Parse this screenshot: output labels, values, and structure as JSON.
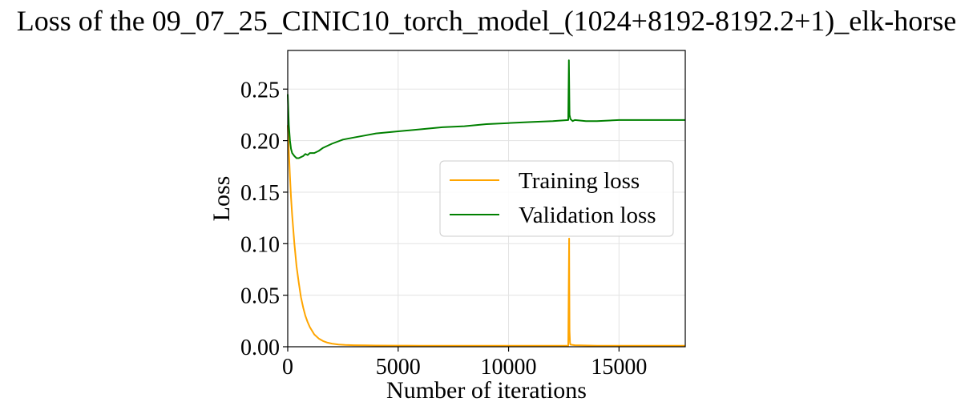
{
  "chart_data": {
    "type": "line",
    "title": "Loss of the 09_07_25_CINIC10_torch_model_(1024+8192-8192.2+1)_elk-horse",
    "xlabel": "Number of iterations",
    "ylabel": "Loss",
    "xlim": [
      0,
      18000
    ],
    "ylim": [
      0,
      0.2875
    ],
    "xticks": [
      0,
      5000,
      10000,
      15000
    ],
    "xtick_labels": [
      "0",
      "5000",
      "10000",
      "15000"
    ],
    "yticks": [
      0,
      0.05,
      0.1,
      0.15,
      0.2,
      0.25
    ],
    "ytick_labels": [
      "0.00",
      "0.05",
      "0.10",
      "0.15",
      "0.20",
      "0.25"
    ],
    "grid": true,
    "legend_position": "center-right",
    "series": [
      {
        "name": "Training loss",
        "color": "#FFA500",
        "x": [
          0,
          50,
          100,
          150,
          200,
          300,
          400,
          500,
          600,
          700,
          800,
          900,
          1000,
          1200,
          1400,
          1600,
          1800,
          2000,
          2300,
          2600,
          3000,
          3500,
          4000,
          5000,
          6000,
          8000,
          10000,
          12000,
          12700,
          12740,
          12750,
          12760,
          12780,
          12800,
          13000,
          14000,
          16000,
          18000
        ],
        "y": [
          0.215,
          0.19,
          0.165,
          0.145,
          0.128,
          0.1,
          0.078,
          0.062,
          0.048,
          0.038,
          0.03,
          0.024,
          0.019,
          0.012,
          0.008,
          0.0055,
          0.004,
          0.003,
          0.0022,
          0.0018,
          0.0015,
          0.0013,
          0.0012,
          0.0011,
          0.001,
          0.001,
          0.001,
          0.001,
          0.001,
          0.105,
          0.06,
          0.015,
          0.004,
          0.002,
          0.0015,
          0.001,
          0.001,
          0.001
        ]
      },
      {
        "name": "Validation loss",
        "color": "#008000",
        "x": [
          0,
          50,
          100,
          150,
          200,
          300,
          400,
          500,
          600,
          700,
          800,
          900,
          1000,
          1200,
          1400,
          1600,
          2000,
          2500,
          3000,
          3500,
          4000,
          5000,
          6000,
          7000,
          8000,
          9000,
          10000,
          11000,
          12000,
          12700,
          12730,
          12760,
          12800,
          12900,
          13000,
          13500,
          14000,
          15000,
          16000,
          17000,
          18000
        ],
        "y": [
          0.245,
          0.215,
          0.2,
          0.192,
          0.188,
          0.185,
          0.183,
          0.183,
          0.184,
          0.185,
          0.187,
          0.186,
          0.188,
          0.188,
          0.19,
          0.193,
          0.197,
          0.201,
          0.203,
          0.205,
          0.207,
          0.209,
          0.211,
          0.213,
          0.214,
          0.216,
          0.217,
          0.218,
          0.219,
          0.22,
          0.278,
          0.225,
          0.221,
          0.219,
          0.22,
          0.219,
          0.219,
          0.22,
          0.22,
          0.22,
          0.22
        ]
      }
    ]
  }
}
